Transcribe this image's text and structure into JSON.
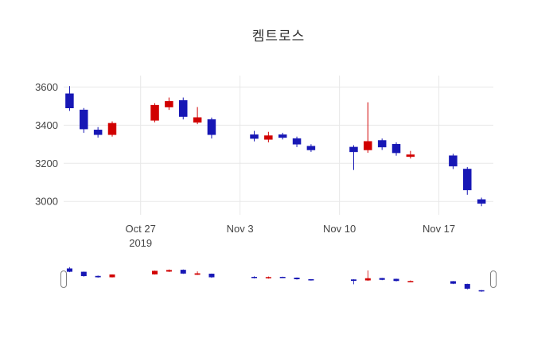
{
  "chart_data": {
    "type": "candlestick",
    "title": "켐트로스",
    "xrange": [
      "2019-10-21T14:00:00Z",
      "2019-11-20T20:00:00Z"
    ],
    "ylim": [
      2930,
      3660
    ],
    "yticks": [
      3600,
      3400,
      3200,
      3000
    ],
    "xticks": [
      {
        "date": "2019-10-27",
        "label": "Oct 27",
        "sublabel": "2019"
      },
      {
        "date": "2019-11-03",
        "label": "Nov 3",
        "sublabel": ""
      },
      {
        "date": "2019-11-10",
        "label": "Nov 10",
        "sublabel": ""
      },
      {
        "date": "2019-11-17",
        "label": "Nov 17",
        "sublabel": ""
      }
    ],
    "colors": {
      "increasing": "#d10000",
      "decreasing": "#1717b5",
      "grid": "#e8e8e8",
      "tick_text": "#444444",
      "handle_stroke": "#7f7f7f"
    },
    "grid": true,
    "rangeslider": true,
    "candles": [
      {
        "date": "2019-10-22",
        "open": 3565,
        "high": 3605,
        "low": 3475,
        "close": 3490
      },
      {
        "date": "2019-10-23",
        "open": 3480,
        "high": 3490,
        "low": 3360,
        "close": 3380
      },
      {
        "date": "2019-10-24",
        "open": 3375,
        "high": 3390,
        "low": 3335,
        "close": 3350
      },
      {
        "date": "2019-10-25",
        "open": 3350,
        "high": 3420,
        "low": 3340,
        "close": 3410
      },
      {
        "date": "2019-10-28",
        "open": 3425,
        "high": 3515,
        "low": 3415,
        "close": 3505
      },
      {
        "date": "2019-10-29",
        "open": 3495,
        "high": 3545,
        "low": 3480,
        "close": 3525
      },
      {
        "date": "2019-10-30",
        "open": 3530,
        "high": 3545,
        "low": 3430,
        "close": 3445
      },
      {
        "date": "2019-10-31",
        "open": 3415,
        "high": 3495,
        "low": 3405,
        "close": 3440
      },
      {
        "date": "2019-11-01",
        "open": 3430,
        "high": 3440,
        "low": 3330,
        "close": 3350
      },
      {
        "date": "2019-11-04",
        "open": 3350,
        "high": 3370,
        "low": 3315,
        "close": 3330
      },
      {
        "date": "2019-11-05",
        "open": 3325,
        "high": 3365,
        "low": 3310,
        "close": 3345
      },
      {
        "date": "2019-11-06",
        "open": 3350,
        "high": 3360,
        "low": 3325,
        "close": 3335
      },
      {
        "date": "2019-11-07",
        "open": 3330,
        "high": 3340,
        "low": 3285,
        "close": 3300
      },
      {
        "date": "2019-11-08",
        "open": 3290,
        "high": 3300,
        "low": 3260,
        "close": 3270
      },
      {
        "date": "2019-11-11",
        "open": 3285,
        "high": 3295,
        "low": 3165,
        "close": 3260
      },
      {
        "date": "2019-11-12",
        "open": 3270,
        "high": 3520,
        "low": 3255,
        "close": 3315
      },
      {
        "date": "2019-11-13",
        "open": 3320,
        "high": 3330,
        "low": 3270,
        "close": 3285
      },
      {
        "date": "2019-11-14",
        "open": 3300,
        "high": 3310,
        "low": 3240,
        "close": 3255
      },
      {
        "date": "2019-11-15",
        "open": 3235,
        "high": 3265,
        "low": 3225,
        "close": 3245
      },
      {
        "date": "2019-11-18",
        "open": 3240,
        "high": 3250,
        "low": 3170,
        "close": 3185
      },
      {
        "date": "2019-11-19",
        "open": 3170,
        "high": 3180,
        "low": 3035,
        "close": 3060
      },
      {
        "date": "2019-11-20",
        "open": 3010,
        "high": 3020,
        "low": 2975,
        "close": 2990
      }
    ]
  }
}
